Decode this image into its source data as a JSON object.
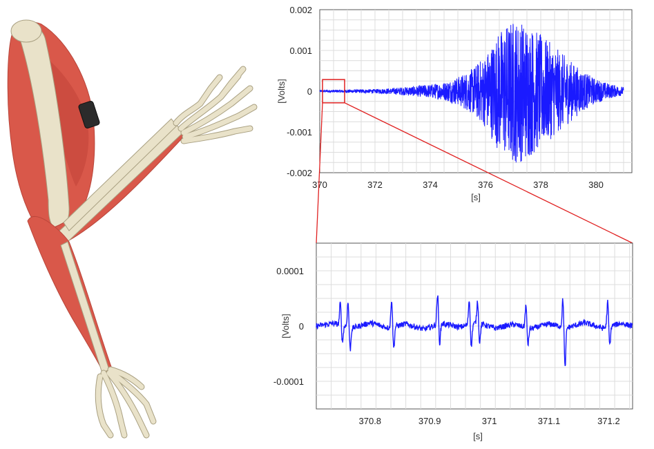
{
  "colors": {
    "signal": "#1a1aff",
    "zoom_marker": "#e02020",
    "muscle": "#d9584a",
    "bone": "#e9e2c9",
    "sensor": "#2b2b2b"
  },
  "illustration": {
    "subject": "arm-anatomy-illustration",
    "icon": "arm-muscle-skeleton-icon",
    "sensor_icon": "emg-sensor-icon"
  },
  "chart_data": [
    {
      "type": "line",
      "id": "overview",
      "xlabel": "[s]",
      "ylabel": "[Volts]",
      "xlim": [
        370,
        381.3
      ],
      "ylim": [
        -0.002,
        0.002
      ],
      "xticks": [
        370,
        372,
        374,
        376,
        378,
        380
      ],
      "xtick_labels": [
        "370",
        "372",
        "374",
        "376",
        "378",
        "380"
      ],
      "yticks": [
        0.002,
        0.001,
        0,
        -0.001,
        -0.002
      ],
      "ytick_labels": [
        "0.002",
        "0.001",
        "0",
        "-0.001",
        "-0.002"
      ],
      "grid": true,
      "series": [
        {
          "x": [
            370.0,
            371.0,
            372.0,
            372.5,
            373.0,
            373.5,
            374.0,
            374.5,
            375.0,
            375.5,
            376.0,
            376.5,
            377.0,
            377.5,
            378.0,
            378.5,
            379.0,
            379.5,
            380.0,
            380.5,
            381.0
          ],
          "amplitude": [
            3e-05,
            4e-05,
            5e-05,
            7e-05,
            0.0001,
            0.00013,
            0.00017,
            0.00022,
            0.00035,
            0.00055,
            0.0009,
            0.0015,
            0.0018,
            0.0017,
            0.0014,
            0.0011,
            0.0008,
            0.0005,
            0.0003,
            0.00018,
            0.0001
          ]
        }
      ],
      "zoom_region": {
        "x": [
          370.1,
          370.9
        ],
        "y": [
          -0.00015,
          0.00015
        ]
      }
    },
    {
      "type": "line",
      "id": "zoomed",
      "xlabel": "[s]",
      "ylabel": "[Volts]",
      "xlim": [
        370.71,
        371.24
      ],
      "ylim": [
        -0.00015,
        0.00015
      ],
      "xticks": [
        370.8,
        370.9,
        371.0,
        371.1,
        371.2
      ],
      "xtick_labels": [
        "370.8",
        "370.9",
        "371",
        "371.1",
        "371.2"
      ],
      "yticks": [
        0.0001,
        0,
        -0.0001
      ],
      "ytick_labels": [
        "0.0001",
        "0",
        "-0.0001"
      ],
      "grid": true,
      "series": [
        {
          "baseline_x": [
            370.71,
            370.74,
            370.77,
            370.8,
            370.83,
            370.86,
            370.89,
            370.92,
            370.95,
            370.98,
            371.01,
            371.04,
            371.07,
            371.1,
            371.13,
            371.16,
            371.19,
            371.22,
            371.24
          ],
          "baseline_y": [
            0.0,
            5e-06,
            -4e-06,
            6e-06,
            -3e-06,
            4e-06,
            -6e-06,
            5e-06,
            -2e-06,
            6e-06,
            -4e-06,
            3e-06,
            -5e-06,
            4e-06,
            -3e-06,
            6e-06,
            -4e-06,
            5e-06,
            0.0
          ],
          "spikes": [
            {
              "x": 370.752,
              "peak": 4e-05,
              "trough": -3e-05
            },
            {
              "x": 370.765,
              "peak": 4.5e-05,
              "trough": -4e-05
            },
            {
              "x": 370.838,
              "peak": 5e-05,
              "trough": -4e-05
            },
            {
              "x": 370.915,
              "peak": 5.5e-05,
              "trough": -3.5e-05
            },
            {
              "x": 370.968,
              "peak": 4.5e-05,
              "trough": -4e-05
            },
            {
              "x": 370.982,
              "peak": 4e-05,
              "trough": -3.5e-05
            },
            {
              "x": 371.063,
              "peak": 4e-05,
              "trough": -3e-05
            },
            {
              "x": 371.125,
              "peak": 5e-05,
              "trough": -7.5e-05
            },
            {
              "x": 371.2,
              "peak": 4.5e-05,
              "trough": -3.5e-05
            }
          ]
        }
      ]
    }
  ]
}
